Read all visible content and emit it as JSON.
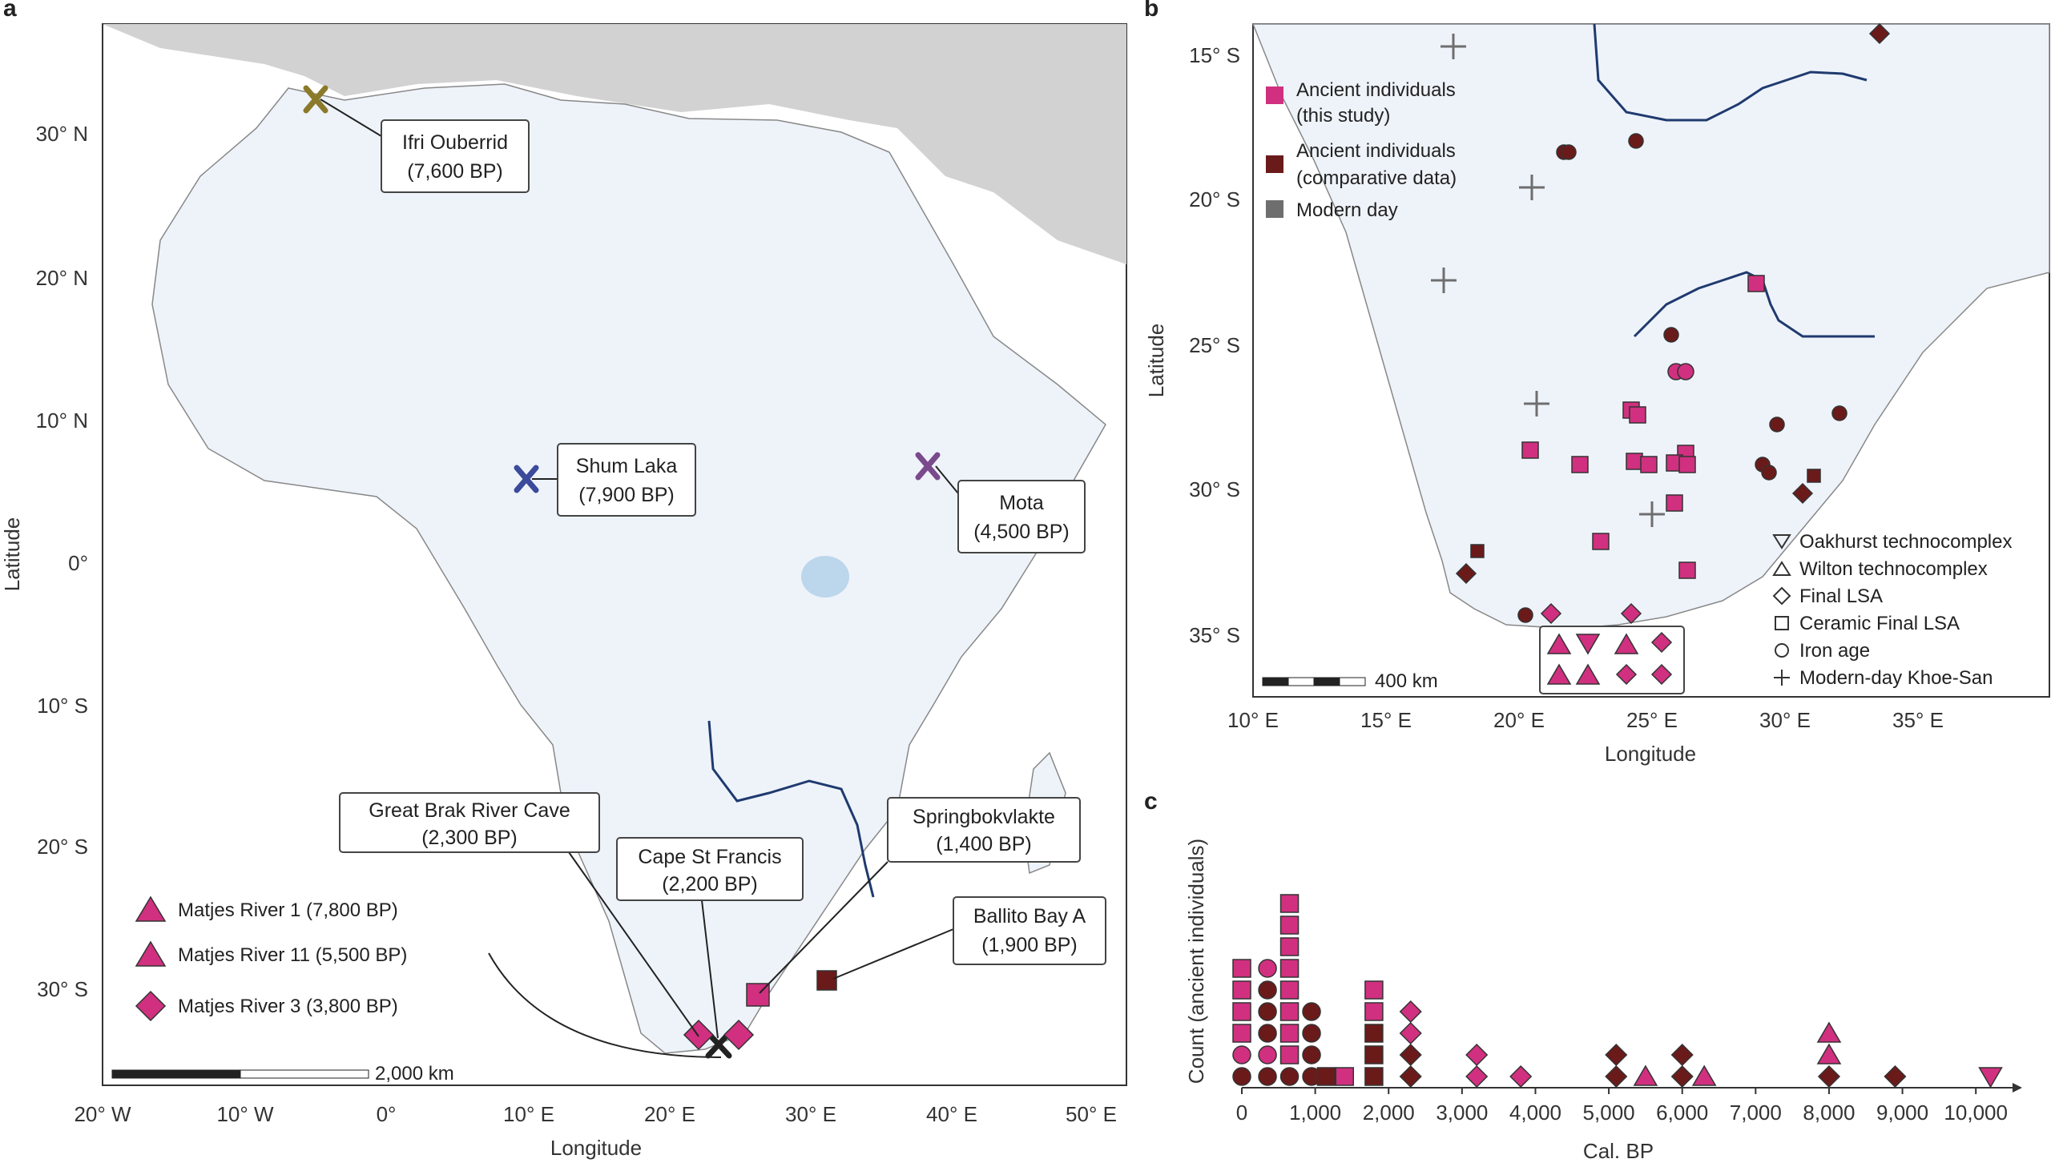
{
  "panels": {
    "a": "a",
    "b": "b",
    "c": "c"
  },
  "colors": {
    "ancient_this_study": "#d0307f",
    "ancient_comparative": "#6b1a1a",
    "modern": "#6e6e6e",
    "ifri": "#8c7a2b",
    "shum": "#3b4a9a",
    "mota": "#7a4a8c",
    "black": "#222222",
    "river": "#1f3a6e",
    "land": "#eef3fa",
    "other_land": "#cfcfcf"
  },
  "panel_a": {
    "xlabel": "Longitude",
    "ylabel": "Latitude",
    "x_ticks": [
      "20° W",
      "10° W",
      "0°",
      "10° E",
      "20° E",
      "30° E",
      "40° E",
      "50° E"
    ],
    "y_ticks": [
      "30° N",
      "20° N",
      "10° N",
      "0°",
      "10° S",
      "20° S",
      "30° S"
    ],
    "scale_label": "2,000 km",
    "sites": [
      {
        "name": "Ifri Ouberrid",
        "age": "(7,600 BP)"
      },
      {
        "name": "Shum Laka",
        "age": "(7,900 BP)"
      },
      {
        "name": "Mota",
        "age": "(4,500 BP)"
      },
      {
        "name": "Great Brak River Cave",
        "age": "(2,300 BP)"
      },
      {
        "name": "Cape St Francis",
        "age": "(2,200 BP)"
      },
      {
        "name": "Springbokvlakte",
        "age": "(1,400 BP)"
      },
      {
        "name": "Ballito Bay A",
        "age": "(1,900 BP)"
      }
    ],
    "legend": [
      {
        "label": "Matjes River 1 (7,800 BP)",
        "shape": "triangle"
      },
      {
        "label": "Matjes River 11 (5,500 BP)",
        "shape": "triangle"
      },
      {
        "label": "Matjes River 3 (3,800 BP)",
        "shape": "diamond"
      }
    ]
  },
  "panel_b": {
    "xlabel": "Longitude",
    "ylabel": "Latitude",
    "x_ticks": [
      "10° E",
      "15° E",
      "20° E",
      "25° E",
      "30° E",
      "35° E"
    ],
    "y_ticks": [
      "15° S",
      "20° S",
      "25° S",
      "30° S",
      "35° S"
    ],
    "scale_label": "400 km",
    "legend_color": [
      {
        "label1": "Ancient individuals",
        "label2": "(this study)"
      },
      {
        "label1": "Ancient individuals",
        "label2": "(comparative data)"
      },
      {
        "label1": "Modern day",
        "label2": ""
      }
    ],
    "legend_shape": [
      "Oakhurst technocomplex",
      "Wilton technocomplex",
      "Final LSA",
      "Ceramic Final LSA",
      "Iron age",
      "Modern-day Khoe-San"
    ]
  },
  "chart_data": {
    "type": "scatter",
    "title": "",
    "xlabel": "Cal. BP",
    "ylabel": "Count (ancient individuals)",
    "xlim": [
      0,
      10500
    ],
    "x_ticks": [
      "0",
      "1,000",
      "2,000",
      "3,000",
      "4,000",
      "5,000",
      "6,000",
      "7,000",
      "8,000",
      "9,000",
      "10,000"
    ],
    "stacks": [
      {
        "x": 0,
        "points": [
          [
            "iron",
            "c"
          ],
          [
            "iron",
            "p"
          ],
          [
            "sq",
            "p"
          ],
          [
            "sq",
            "p"
          ],
          [
            "sq",
            "p"
          ],
          [
            "sq",
            "p"
          ]
        ]
      },
      {
        "x": 350,
        "points": [
          [
            "iron",
            "c"
          ],
          [
            "iron",
            "p"
          ],
          [
            "iron",
            "c"
          ],
          [
            "iron",
            "c"
          ],
          [
            "iron",
            "c"
          ],
          [
            "iron",
            "p"
          ]
        ]
      },
      {
        "x": 650,
        "points": [
          [
            "iron",
            "c"
          ],
          [
            "sq",
            "p"
          ],
          [
            "sq",
            "p"
          ],
          [
            "sq",
            "p"
          ],
          [
            "sq",
            "p"
          ],
          [
            "sq",
            "p"
          ],
          [
            "sq",
            "p"
          ],
          [
            "sq",
            "p"
          ],
          [
            "sq",
            "p"
          ]
        ]
      },
      {
        "x": 950,
        "points": [
          [
            "iron",
            "c"
          ],
          [
            "iron",
            "c"
          ],
          [
            "iron",
            "c"
          ],
          [
            "iron",
            "c"
          ]
        ]
      },
      {
        "x": 1150,
        "points": [
          [
            "sq",
            "c"
          ]
        ]
      },
      {
        "x": 1400,
        "points": [
          [
            "sq",
            "p"
          ]
        ]
      },
      {
        "x": 1800,
        "points": [
          [
            "sq",
            "c"
          ],
          [
            "sq",
            "c"
          ],
          [
            "sq",
            "c"
          ],
          [
            "sq",
            "p"
          ],
          [
            "sq",
            "p"
          ]
        ]
      },
      {
        "x": 2300,
        "points": [
          [
            "dia",
            "c"
          ],
          [
            "dia",
            "c"
          ],
          [
            "dia",
            "p"
          ],
          [
            "dia",
            "p"
          ]
        ]
      },
      {
        "x": 3200,
        "points": [
          [
            "dia",
            "p"
          ],
          [
            "dia",
            "p"
          ]
        ]
      },
      {
        "x": 3800,
        "points": [
          [
            "dia",
            "p"
          ]
        ]
      },
      {
        "x": 5100,
        "points": [
          [
            "dia",
            "c"
          ],
          [
            "dia",
            "c"
          ]
        ]
      },
      {
        "x": 5500,
        "points": [
          [
            "tri",
            "p"
          ]
        ]
      },
      {
        "x": 6000,
        "points": [
          [
            "dia",
            "c"
          ],
          [
            "dia",
            "c"
          ]
        ]
      },
      {
        "x": 6300,
        "points": [
          [
            "tri",
            "p"
          ]
        ]
      },
      {
        "x": 8000,
        "points": [
          [
            "dia",
            "c"
          ],
          [
            "tri",
            "p"
          ],
          [
            "tri",
            "p"
          ]
        ]
      },
      {
        "x": 8900,
        "points": [
          [
            "dia",
            "c"
          ]
        ]
      },
      {
        "x": 10200,
        "points": [
          [
            "itri",
            "p"
          ]
        ]
      }
    ]
  }
}
